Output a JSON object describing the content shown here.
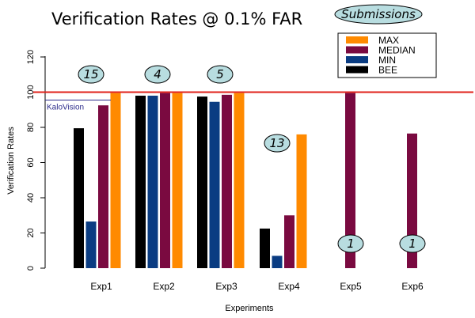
{
  "chart_data": {
    "type": "bar",
    "title": "Verification Rates @ 0.1% FAR",
    "xlabel": "Experiments",
    "ylabel": "Verification Rates",
    "ylim": [
      0,
      120
    ],
    "yticks": [
      0,
      20,
      40,
      60,
      80,
      100,
      120
    ],
    "categories": [
      "Exp1",
      "Exp2",
      "Exp3",
      "Exp4",
      "Exp5",
      "Exp6"
    ],
    "series": [
      {
        "name": "BEE",
        "color": "#000000",
        "values": [
          79.5,
          98,
          97.5,
          22.5,
          null,
          null
        ]
      },
      {
        "name": "MIN",
        "color": "#0a3c82",
        "values": [
          26.5,
          98,
          94.5,
          7,
          null,
          null
        ]
      },
      {
        "name": "MEDIAN",
        "color": "#7a0a40",
        "values": [
          92.5,
          99.5,
          98.5,
          30,
          99.5,
          76.5
        ]
      },
      {
        "name": "MAX",
        "color": "#ff8a00",
        "values": [
          99.5,
          99.5,
          99.5,
          76,
          null,
          null
        ]
      }
    ],
    "legend_order": [
      "MAX",
      "MEDIAN",
      "MIN",
      "BEE"
    ],
    "legend_placement": "top-right",
    "submissions_label": "Submissions",
    "submission_counts": [
      "15",
      "4",
      "5",
      "13",
      "1",
      "1"
    ],
    "reference_lines": [
      {
        "label": "",
        "value": 100,
        "color": "#e0201a"
      },
      {
        "label": "KaloVision",
        "value": 95.5,
        "color": "#2a2a8a"
      }
    ],
    "grid": false
  }
}
